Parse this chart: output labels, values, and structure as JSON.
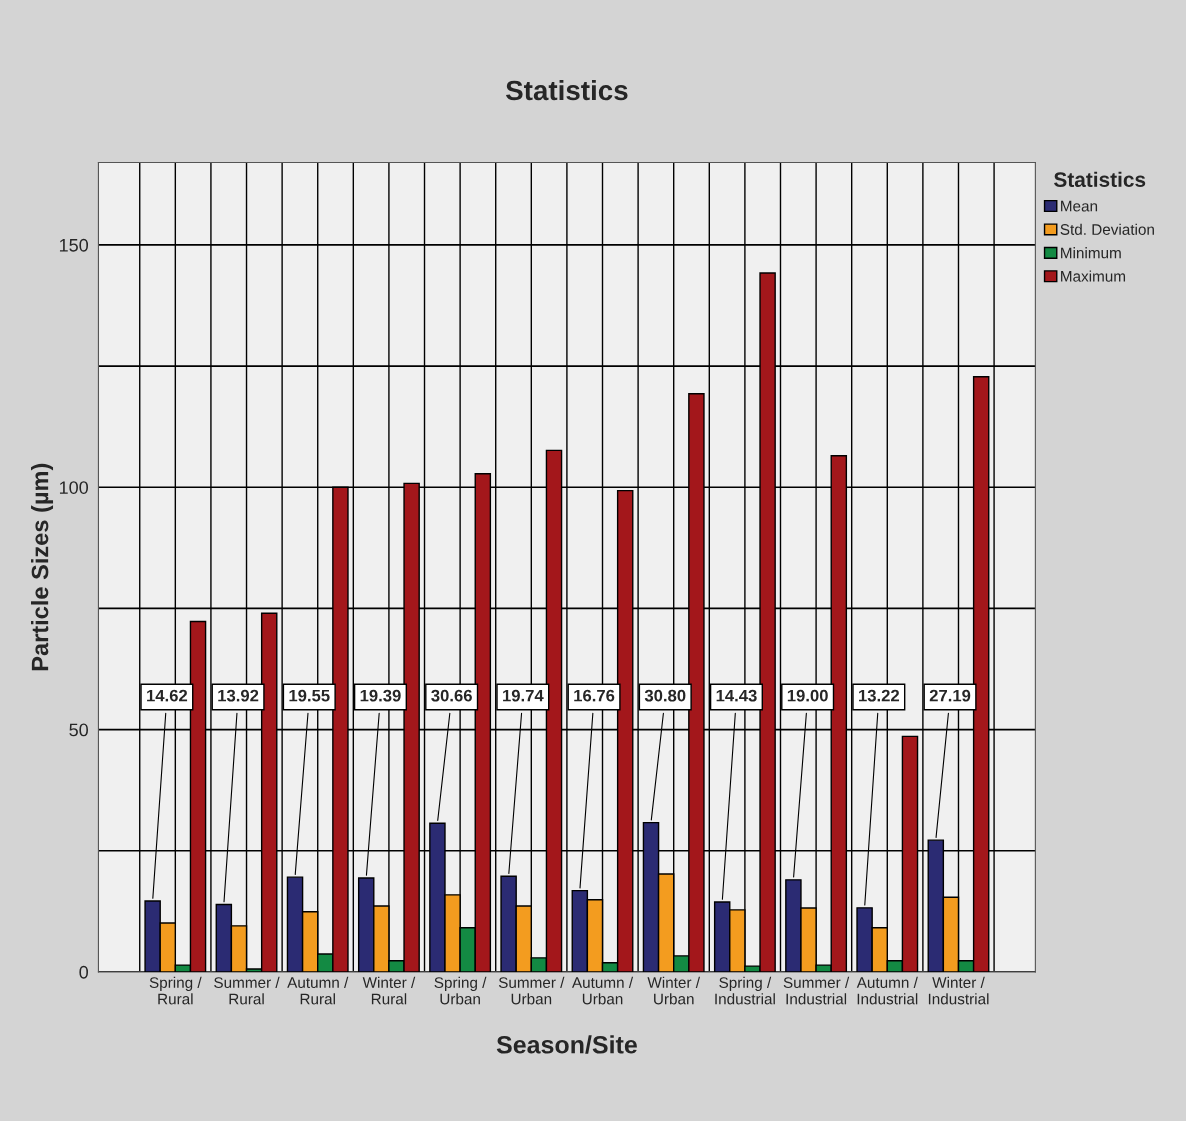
{
  "chart_data": {
    "type": "bar",
    "title": "Statistics",
    "xlabel": "Season/Site",
    "ylabel": "Particle Sizes (µm)",
    "legend_title": "Statistics",
    "categories": [
      "Spring /\nRural",
      "Summer /\nRural",
      "Autumn /\nRural",
      "Winter /\nRural",
      "Spring /\nUrban",
      "Summer /\nUrban",
      "Autumn /\nUrban",
      "Winter /\nUrban",
      "Spring /\nIndustrial",
      "Summer /\nIndustrial",
      "Autumn /\nIndustrial",
      "Winter /\nIndustrial"
    ],
    "series": [
      {
        "name": "Mean",
        "color": "#2b2b73",
        "values": [
          14.62,
          13.92,
          19.55,
          19.39,
          30.66,
          19.74,
          16.76,
          30.8,
          14.43,
          19.0,
          13.22,
          27.19
        ],
        "value_labels": [
          "14.62",
          "13.92",
          "19.55",
          "19.39",
          "30.66",
          "19.74",
          "16.76",
          "30.80",
          "14.43",
          "19.00",
          "13.22",
          "27.19"
        ]
      },
      {
        "name": "Std. Deviation",
        "color": "#f39c1f",
        "values": [
          10.1,
          9.5,
          12.4,
          13.6,
          15.9,
          13.6,
          14.9,
          20.2,
          12.8,
          13.2,
          9.1,
          15.4
        ]
      },
      {
        "name": "Minimum",
        "color": "#138a43",
        "values": [
          1.4,
          0.6,
          3.7,
          2.3,
          9.1,
          2.9,
          1.9,
          3.3,
          1.2,
          1.4,
          2.3,
          2.3
        ]
      },
      {
        "name": "Maximum",
        "color": "#a3171b",
        "values": [
          72.3,
          74.0,
          100.0,
          100.8,
          102.8,
          107.6,
          99.3,
          119.3,
          144.2,
          106.5,
          48.6,
          122.8
        ]
      }
    ],
    "ylim": [
      0,
      167
    ],
    "yticks": [
      0,
      {
        "value": 25,
        "label": null
      },
      50,
      {
        "value": 75,
        "label": null
      },
      100,
      {
        "value": 125,
        "label": null
      },
      150
    ],
    "grid": true,
    "legend": "right"
  }
}
